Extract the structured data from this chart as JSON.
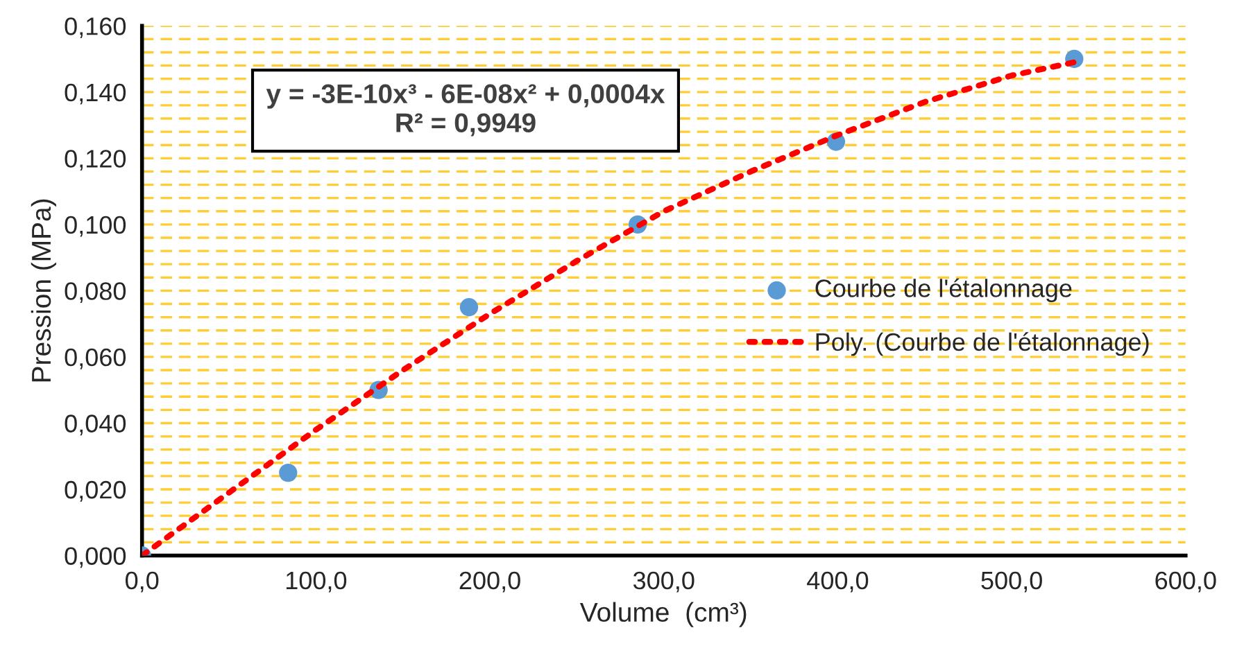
{
  "chart_data": {
    "type": "scatter",
    "xlabel": "Volume  (cm³)",
    "ylabel": "Pression (MPa)",
    "annotations": [
      "y = -3E-10x³ - 6E-08x² + 0,0004x\nR² = 0,9949"
    ],
    "series": [
      {
        "name": "Courbe de l'étalonnage",
        "color": "#5b9bd5",
        "marker": "circle",
        "x": [
          0,
          84,
          136,
          188,
          285,
          399,
          536
        ],
        "values": [
          0.0,
          0.025,
          0.05,
          0.075,
          0.1,
          0.125,
          0.15
        ]
      },
      {
        "name": "Poly. (Courbe de l'étalonnage)",
        "type": "line",
        "color": "#ff0000",
        "line_style": "dotted",
        "marker": "none",
        "x": [
          0,
          50,
          100,
          150,
          200,
          250,
          300,
          350,
          400,
          450,
          500,
          536
        ],
        "values": [
          0.0,
          0.019,
          0.038,
          0.056,
          0.073,
          0.089,
          0.104,
          0.116,
          0.127,
          0.137,
          0.145,
          0.149
        ]
      }
    ],
    "xlim": [
      0,
      600
    ],
    "xticks": [
      {
        "value": 0,
        "label": "0,0"
      },
      {
        "value": 100,
        "label": "100,0"
      },
      {
        "value": 200,
        "label": "200,0"
      },
      {
        "value": 300,
        "label": "300,0"
      },
      {
        "value": 400,
        "label": "400,0"
      },
      {
        "value": 500,
        "label": "500,0"
      },
      {
        "value": 600,
        "label": "600,0"
      }
    ],
    "ylim": [
      0,
      0.16
    ],
    "yticks": [
      {
        "value": 0,
        "label": "0,000"
      },
      {
        "value": 0.004,
        "label": null
      },
      {
        "value": 0.008,
        "label": null
      },
      {
        "value": 0.012,
        "label": null
      },
      {
        "value": 0.016,
        "label": null
      },
      {
        "value": 0.02,
        "label": "0,020"
      },
      {
        "value": 0.024,
        "label": null
      },
      {
        "value": 0.028,
        "label": null
      },
      {
        "value": 0.032,
        "label": null
      },
      {
        "value": 0.036,
        "label": null
      },
      {
        "value": 0.04,
        "label": "0,040"
      },
      {
        "value": 0.044,
        "label": null
      },
      {
        "value": 0.048,
        "label": null
      },
      {
        "value": 0.052,
        "label": null
      },
      {
        "value": 0.056,
        "label": null
      },
      {
        "value": 0.06,
        "label": "0,060"
      },
      {
        "value": 0.064,
        "label": null
      },
      {
        "value": 0.068,
        "label": null
      },
      {
        "value": 0.072,
        "label": null
      },
      {
        "value": 0.076,
        "label": null
      },
      {
        "value": 0.08,
        "label": "0,080"
      },
      {
        "value": 0.084,
        "label": null
      },
      {
        "value": 0.088,
        "label": null
      },
      {
        "value": 0.092,
        "label": null
      },
      {
        "value": 0.096,
        "label": null
      },
      {
        "value": 0.1,
        "label": "0,100"
      },
      {
        "value": 0.104,
        "label": null
      },
      {
        "value": 0.108,
        "label": null
      },
      {
        "value": 0.112,
        "label": null
      },
      {
        "value": 0.116,
        "label": null
      },
      {
        "value": 0.12,
        "label": "0,120"
      },
      {
        "value": 0.124,
        "label": null
      },
      {
        "value": 0.128,
        "label": null
      },
      {
        "value": 0.132,
        "label": null
      },
      {
        "value": 0.136,
        "label": null
      },
      {
        "value": 0.14,
        "label": "0,140"
      },
      {
        "value": 0.144,
        "label": null
      },
      {
        "value": 0.148,
        "label": null
      },
      {
        "value": 0.152,
        "label": null
      },
      {
        "value": 0.156,
        "label": null
      },
      {
        "value": 0.16,
        "label": "0,160"
      }
    ],
    "grid": "y",
    "legend": "right"
  }
}
